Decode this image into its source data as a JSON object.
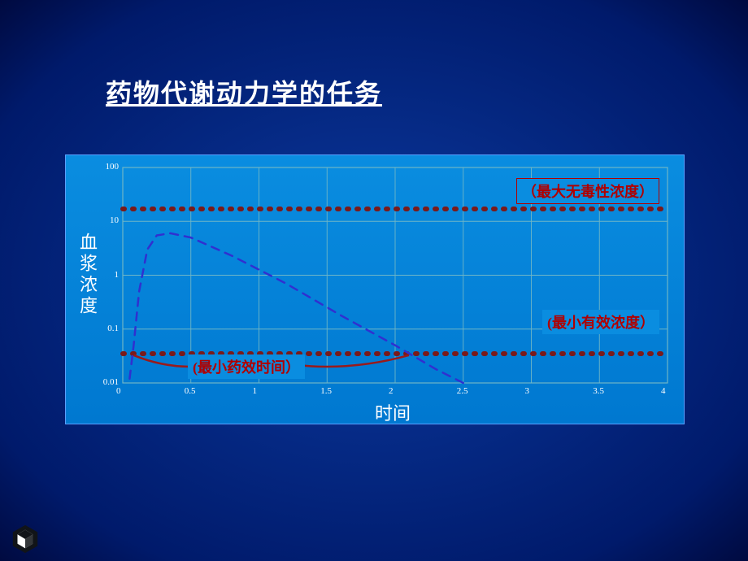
{
  "title": "药物代谢动力学的任务",
  "chart": {
    "type": "line",
    "background_color": "#0a8de0",
    "border_color": "#5aa0ff",
    "grid_color": "#6fb6c6",
    "y_axis": {
      "label": "血浆浓度",
      "scale": "log",
      "min": 0.01,
      "max": 100,
      "ticks": [
        0.01,
        0.1,
        1,
        10,
        100
      ],
      "tick_labels": [
        "0.01",
        "0.1",
        "1",
        "10",
        "100"
      ],
      "label_color": "#ffffff",
      "label_fontsize": 22,
      "tick_color": "#ffffff",
      "tick_fontsize": 11
    },
    "x_axis": {
      "label": "时间",
      "min": 0,
      "max": 4,
      "ticks": [
        0,
        0.5,
        1,
        1.5,
        2,
        2.5,
        3,
        3.5,
        4
      ],
      "tick_labels": [
        "0",
        "0.5",
        "1",
        "1.5",
        "2",
        "2.5",
        "3",
        "3.5",
        "4"
      ],
      "label_color": "#ffffff",
      "label_fontsize": 22,
      "tick_color": "#ffffff",
      "tick_fontsize": 11
    },
    "reference_lines": {
      "max_nontoxic": {
        "y": 17,
        "color": "#7a1a1a",
        "style": "dotted",
        "width": 6,
        "label": "（最大无毒性浓度）",
        "label_color": "#b00000"
      },
      "min_effective": {
        "y": 0.035,
        "color": "#7a1a1a",
        "style": "dotted",
        "width": 6,
        "label": "(最小有效浓度）",
        "label_color": "#b00000"
      }
    },
    "curve": {
      "color": "#3030d0",
      "style": "dashed",
      "width": 2.5,
      "points_xy": [
        [
          0.05,
          0.012
        ],
        [
          0.08,
          0.05
        ],
        [
          0.12,
          0.5
        ],
        [
          0.18,
          3.0
        ],
        [
          0.25,
          5.5
        ],
        [
          0.35,
          6.0
        ],
        [
          0.5,
          5.0
        ],
        [
          0.8,
          2.3
        ],
        [
          1.2,
          0.7
        ],
        [
          1.6,
          0.18
        ],
        [
          2.0,
          0.05
        ],
        [
          2.3,
          0.018
        ],
        [
          2.5,
          0.01
        ]
      ]
    },
    "annotation_brace": {
      "label": "(最小药效时间）",
      "label_color": "#b00000",
      "from_x": 0.08,
      "to_x": 2.1,
      "brace_color": "#9a1a1a"
    }
  },
  "logo": {
    "type": "hex-star",
    "color": "#111418"
  }
}
